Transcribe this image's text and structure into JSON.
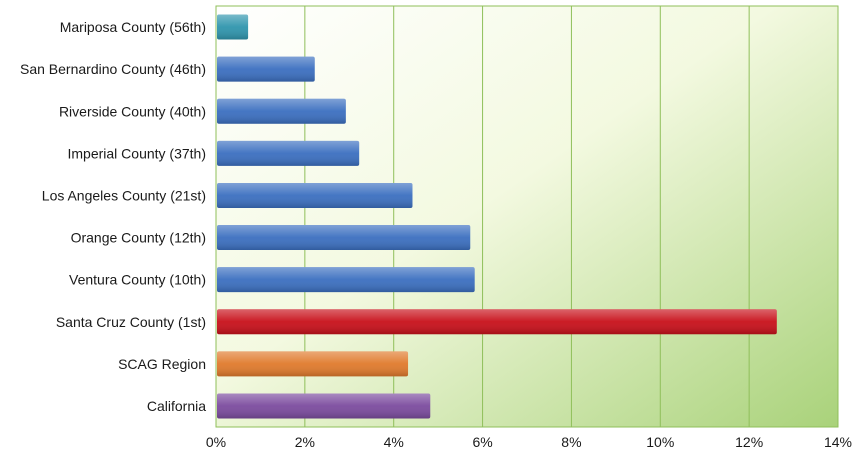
{
  "chart_data": {
    "type": "bar",
    "orientation": "horizontal",
    "title": "",
    "xlabel": "",
    "ylabel": "",
    "categories": [
      "Mariposa County (56th)",
      "San Bernardino County (46th)",
      "Riverside County (40th)",
      "Imperial County (37th)",
      "Los Angeles County (21st)",
      "Orange County (12th)",
      "Ventura County (10th)",
      "Santa Cruz County (1st)",
      "SCAG Region",
      "California"
    ],
    "values": [
      0.7,
      2.2,
      2.9,
      3.2,
      4.4,
      5.7,
      5.8,
      12.6,
      4.3,
      4.8
    ],
    "bar_colors": [
      "#2f95ad",
      "#3b6fc0",
      "#3b6fc0",
      "#3b6fc0",
      "#3b6fc0",
      "#3b6fc0",
      "#3b6fc0",
      "#c8101a",
      "#e07a2c",
      "#7b4b9e"
    ],
    "xlim": [
      0,
      14
    ],
    "xticks": [
      0,
      2,
      4,
      6,
      8,
      10,
      12,
      14
    ],
    "xtick_labels": [
      "0%",
      "2%",
      "4%",
      "6%",
      "8%",
      "10%",
      "12%",
      "14%"
    ],
    "grid": "vertical",
    "legend": "none",
    "plot_background": [
      "#ffffff",
      "#f3f9e0",
      "#a9d27a"
    ],
    "gridline_color": "#8fbf5a"
  }
}
